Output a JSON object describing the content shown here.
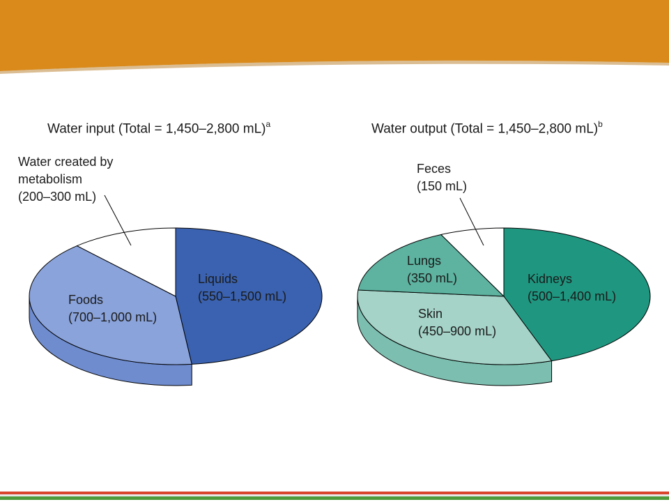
{
  "colors": {
    "banner": "#d98a1a",
    "banner_shadow": "#b06c10",
    "footer_red": "#d9452d",
    "footer_green": "#4f9a3a"
  },
  "chart_data": [
    {
      "type": "pie",
      "title": "Water input (Total = 1,450–2,800 mL)",
      "footnote_mark": "a",
      "slices": [
        {
          "label": "Liquids",
          "value_text": "(550–1,500 mL)",
          "value": 1025,
          "color": "#3a62b0",
          "side": "#1e4a9c"
        },
        {
          "label": "Foods",
          "value_text": "(700–1,000 mL)",
          "value": 850,
          "color": "#8aa3db",
          "side": "#6f8ccf"
        },
        {
          "label": "Water created by metabolism",
          "value_text": "(200–300 mL)",
          "value": 250,
          "color": "#ffffff",
          "side": "#ffffff"
        }
      ]
    },
    {
      "type": "pie",
      "title": "Water output (Total = 1,450–2,800 mL)",
      "footnote_mark": "b",
      "slices": [
        {
          "label": "Kidneys",
          "value_text": "(500–1,400 mL)",
          "value": 950,
          "color": "#1f9780",
          "side": "#0f7f68"
        },
        {
          "label": "Skin",
          "value_text": "(450–900 mL)",
          "value": 675,
          "color": "#a5d3c8",
          "side": "#7cbfb0"
        },
        {
          "label": "Lungs",
          "value_text": "(350 mL)",
          "value": 350,
          "color": "#5db3a0",
          "side": "#5db3a0"
        },
        {
          "label": "Feces",
          "value_text": "(150 mL)",
          "value": 150,
          "color": "#ffffff",
          "side": "#ffffff"
        }
      ]
    }
  ]
}
